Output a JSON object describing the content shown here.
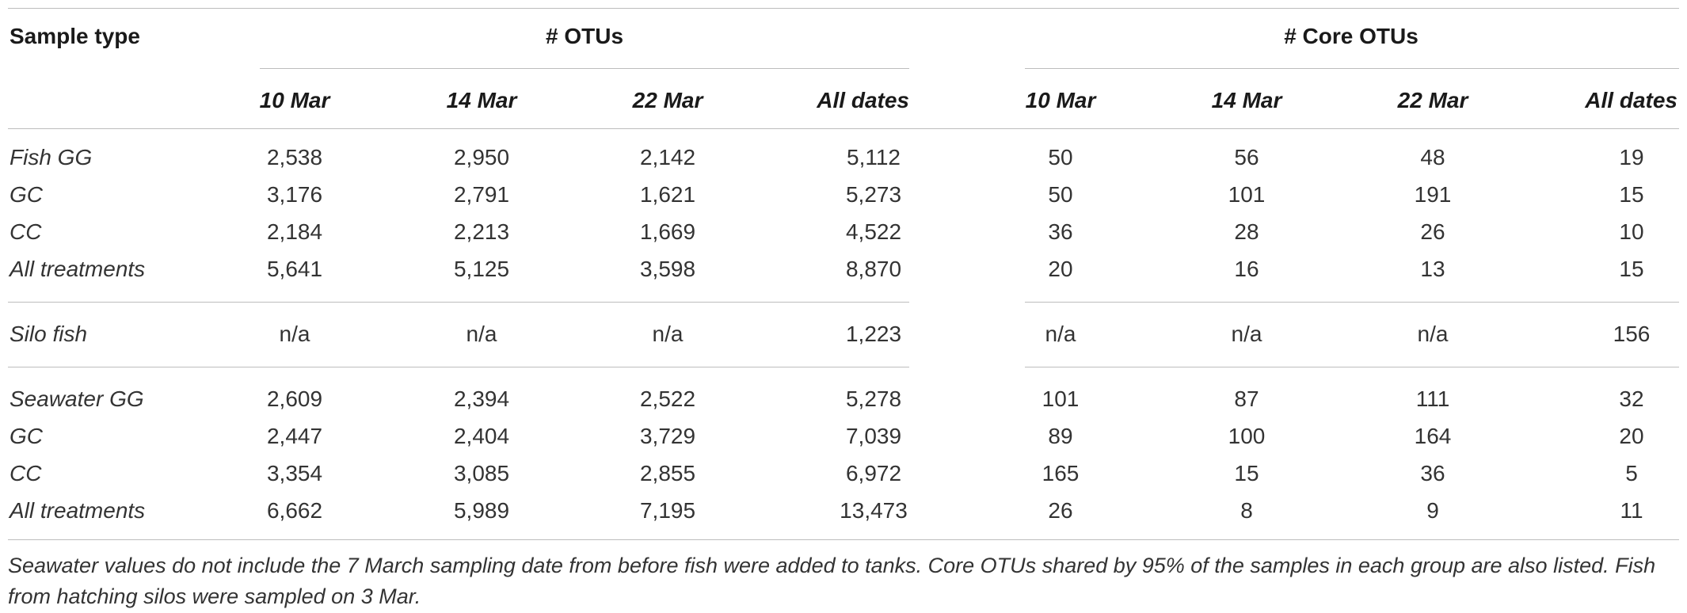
{
  "headers": {
    "sample_type": "Sample type",
    "otus": "# OTUs",
    "core_otus": "# Core OTUs",
    "otu_dates": [
      "10 Mar",
      "14 Mar",
      "22 Mar",
      "All dates"
    ],
    "core_dates": [
      "10 Mar",
      "14 Mar",
      "22 Mar",
      "All dates"
    ]
  },
  "rows": [
    {
      "label": "Fish GG",
      "otus": [
        "2,538",
        "2,950",
        "2,142",
        "5,112"
      ],
      "core": [
        "50",
        "56",
        "48",
        "19"
      ]
    },
    {
      "label": "GC",
      "otus": [
        "3,176",
        "2,791",
        "1,621",
        "5,273"
      ],
      "core": [
        "50",
        "101",
        "191",
        "15"
      ]
    },
    {
      "label": "CC",
      "otus": [
        "2,184",
        "2,213",
        "1,669",
        "4,522"
      ],
      "core": [
        "36",
        "28",
        "26",
        "10"
      ]
    },
    {
      "label": "All treatments",
      "otus": [
        "5,641",
        "5,125",
        "3,598",
        "8,870"
      ],
      "core": [
        "20",
        "16",
        "13",
        "15"
      ]
    },
    {
      "label": "Silo fish",
      "otus": [
        "n/a",
        "n/a",
        "n/a",
        "1,223"
      ],
      "core": [
        "n/a",
        "n/a",
        "n/a",
        "156"
      ]
    },
    {
      "label": "Seawater GG",
      "otus": [
        "2,609",
        "2,394",
        "2,522",
        "5,278"
      ],
      "core": [
        "101",
        "87",
        "111",
        "32"
      ]
    },
    {
      "label": "GC",
      "otus": [
        "2,447",
        "2,404",
        "3,729",
        "7,039"
      ],
      "core": [
        "89",
        "100",
        "164",
        "20"
      ]
    },
    {
      "label": "CC",
      "otus": [
        "3,354",
        "3,085",
        "2,855",
        "6,972"
      ],
      "core": [
        "165",
        "15",
        "36",
        "5"
      ]
    },
    {
      "label": "All treatments",
      "otus": [
        "6,662",
        "5,989",
        "7,195",
        "13,473"
      ],
      "core": [
        "26",
        "8",
        "9",
        "11"
      ]
    }
  ],
  "footnote": "Seawater values do not include the 7 March sampling date from before fish were added to tanks. Core OTUs shared by 95% of the samples in each group are also listed. Fish from hatching silos were sampled on 3 Mar."
}
